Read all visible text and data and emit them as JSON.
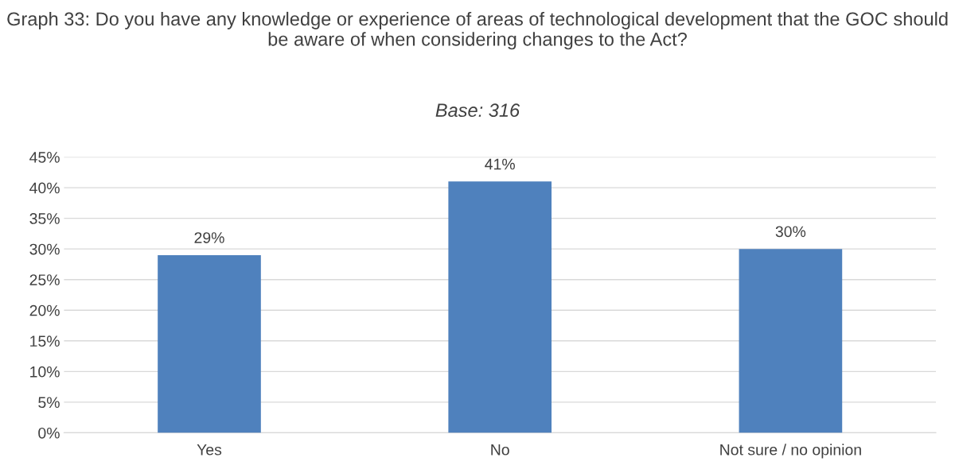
{
  "chart_data": {
    "type": "bar",
    "title": "Graph 33: Do you have any knowledge or experience of areas of technological development that the GOC should be aware of when considering changes to the Act?",
    "subtitle": "Base: 316",
    "categories": [
      "Yes",
      "No",
      "Not sure / no opinion"
    ],
    "values": [
      29,
      41,
      30
    ],
    "value_labels": [
      "29%",
      "41%",
      "30%"
    ],
    "color": "#4f81bd",
    "ylim": [
      0,
      45
    ],
    "yticks": [
      {
        "value": 0,
        "label": "0%"
      },
      {
        "value": 5,
        "label": "5%"
      },
      {
        "value": 10,
        "label": "10%"
      },
      {
        "value": 15,
        "label": "15%"
      },
      {
        "value": 20,
        "label": "20%"
      },
      {
        "value": 25,
        "label": "25%"
      },
      {
        "value": 30,
        "label": "30%"
      },
      {
        "value": 35,
        "label": "35%"
      },
      {
        "value": 40,
        "label": "40%"
      },
      {
        "value": 45,
        "label": "45%"
      }
    ],
    "grid": "y"
  }
}
